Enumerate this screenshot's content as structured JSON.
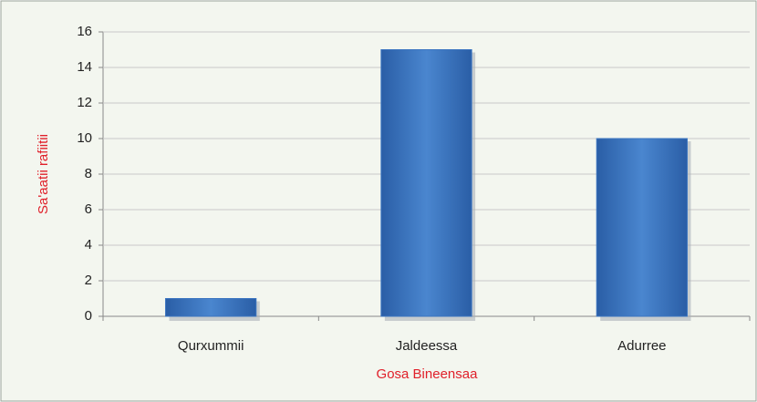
{
  "chart_data": {
    "type": "bar",
    "x_label": "Gosa Bineensaa",
    "y_label": "Sa'aatii  rafiitii",
    "categories": [
      "Qurxummii",
      "Jaldeessa",
      "Adurree"
    ],
    "values": [
      1,
      15,
      10
    ],
    "color": "#3a74c0",
    "ylim": [
      0,
      16
    ],
    "yticks": [
      0,
      2,
      4,
      6,
      8,
      10,
      12,
      14,
      16
    ],
    "grid": true
  }
}
